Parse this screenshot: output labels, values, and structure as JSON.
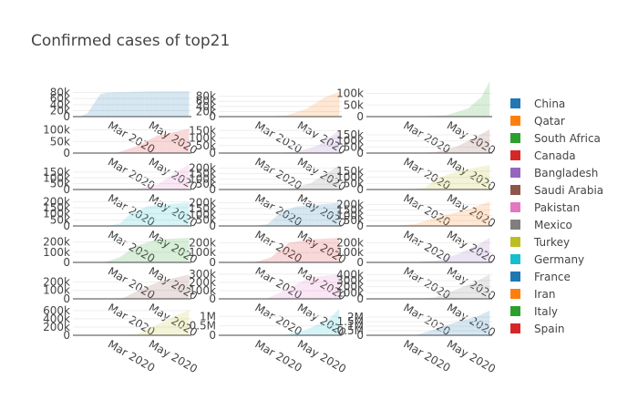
{
  "chart_data": {
    "type": "bar",
    "title": "Confirmed cases of top21",
    "layout_grid": {
      "rows": 7,
      "cols": 3
    },
    "x_tick_labels": [
      "Mar 2020",
      "May 2020"
    ],
    "x_range": [
      "2020-01-10",
      "2020-07-05"
    ],
    "legend": [
      {
        "name": "China",
        "color": "#1f77b4"
      },
      {
        "name": "Qatar",
        "color": "#ff7f0e"
      },
      {
        "name": "South Africa",
        "color": "#2ca02c"
      },
      {
        "name": "Canada",
        "color": "#d62728"
      },
      {
        "name": "Bangladesh",
        "color": "#9467bd"
      },
      {
        "name": "Saudi Arabia",
        "color": "#8c564b"
      },
      {
        "name": "Pakistan",
        "color": "#e377c2"
      },
      {
        "name": "Mexico",
        "color": "#7f7f7f"
      },
      {
        "name": "Turkey",
        "color": "#bcbd22"
      },
      {
        "name": "Germany",
        "color": "#17becf"
      },
      {
        "name": "France",
        "color": "#1f77b4"
      },
      {
        "name": "Iran",
        "color": "#ff7f0e"
      },
      {
        "name": "Italy",
        "color": "#2ca02c"
      },
      {
        "name": "Spain",
        "color": "#d62728"
      }
    ],
    "panels": [
      {
        "color": "#1f77b4",
        "ylim": [
          0,
          85000
        ],
        "yticks": [
          "0",
          "20k",
          "40k",
          "60k",
          "80k"
        ],
        "ytick_values": [
          0,
          20000,
          40000,
          60000,
          80000
        ],
        "series": [
          [
            "2020-01-22",
            550
          ],
          [
            "2020-02-01",
            12000
          ],
          [
            "2020-02-10",
            42000
          ],
          [
            "2020-02-20",
            75000
          ],
          [
            "2020-03-01",
            80000
          ],
          [
            "2020-04-01",
            82000
          ],
          [
            "2020-05-01",
            84000
          ],
          [
            "2020-07-01",
            84500
          ]
        ]
      },
      {
        "color": "#ff7f0e",
        "ylim": [
          0,
          100000
        ],
        "yticks": [
          "0",
          "20k",
          "40k",
          "60k",
          "80k"
        ],
        "ytick_values": [
          0,
          20000,
          40000,
          60000,
          80000
        ],
        "series": [
          [
            "2020-01-22",
            0
          ],
          [
            "2020-03-15",
            400
          ],
          [
            "2020-04-15",
            4000
          ],
          [
            "2020-05-15",
            30000
          ],
          [
            "2020-06-10",
            75000
          ],
          [
            "2020-07-01",
            97000
          ]
        ]
      },
      {
        "color": "#2ca02c",
        "ylim": [
          0,
          110000
        ],
        "yticks": [
          "0",
          "50k",
          "100k"
        ],
        "ytick_values": [
          0,
          50000,
          100000
        ],
        "series": [
          [
            "2020-01-22",
            0
          ],
          [
            "2020-03-20",
            200
          ],
          [
            "2020-05-01",
            5500
          ],
          [
            "2020-06-01",
            35000
          ],
          [
            "2020-06-20",
            85000
          ],
          [
            "2020-07-01",
            150000
          ]
        ]
      },
      {
        "color": "#d62728",
        "ylim": [
          0,
          110000
        ],
        "yticks": [
          "0",
          "50k",
          "100k"
        ],
        "ytick_values": [
          0,
          50000,
          100000
        ],
        "series": [
          [
            "2020-01-22",
            0
          ],
          [
            "2020-03-15",
            300
          ],
          [
            "2020-04-15",
            30000
          ],
          [
            "2020-05-15",
            75000
          ],
          [
            "2020-07-01",
            104000
          ]
        ]
      },
      {
        "color": "#9467bd",
        "ylim": [
          0,
          170000
        ],
        "yticks": [
          "0",
          "50k",
          "100k",
          "150k"
        ],
        "ytick_values": [
          0,
          50000,
          100000,
          150000
        ],
        "series": [
          [
            "2020-01-22",
            0
          ],
          [
            "2020-04-01",
            50
          ],
          [
            "2020-05-01",
            8000
          ],
          [
            "2020-06-01",
            50000
          ],
          [
            "2020-07-01",
            150000
          ]
        ]
      },
      {
        "color": "#8c564b",
        "ylim": [
          0,
          210000
        ],
        "yticks": [
          "0",
          "50k",
          "100k",
          "150k"
        ],
        "ytick_values": [
          0,
          50000,
          100000,
          150000
        ],
        "series": [
          [
            "2020-01-22",
            0
          ],
          [
            "2020-03-15",
            100
          ],
          [
            "2020-04-15",
            7000
          ],
          [
            "2020-05-15",
            50000
          ],
          [
            "2020-06-15",
            140000
          ],
          [
            "2020-07-01",
            195000
          ]
        ]
      },
      {
        "color": "#e377c2",
        "ylim": [
          0,
          220000
        ],
        "yticks": [
          "0",
          "50k",
          "100k",
          "150k"
        ],
        "ytick_values": [
          0,
          50000,
          100000,
          150000
        ],
        "series": [
          [
            "2020-01-22",
            0
          ],
          [
            "2020-03-15",
            50
          ],
          [
            "2020-04-15",
            7000
          ],
          [
            "2020-05-15",
            40000
          ],
          [
            "2020-06-15",
            160000
          ],
          [
            "2020-07-01",
            215000
          ]
        ]
      },
      {
        "color": "#7f7f7f",
        "ylim": [
          0,
          240000
        ],
        "yticks": [
          "0",
          "50k",
          "100k",
          "150k",
          "200k"
        ],
        "ytick_values": [
          0,
          50000,
          100000,
          150000,
          200000
        ],
        "series": [
          [
            "2020-01-22",
            0
          ],
          [
            "2020-03-20",
            200
          ],
          [
            "2020-04-20",
            8000
          ],
          [
            "2020-05-20",
            55000
          ],
          [
            "2020-06-20",
            180000
          ],
          [
            "2020-07-01",
            230000
          ]
        ]
      },
      {
        "color": "#bcbd22",
        "ylim": [
          0,
          210000
        ],
        "yticks": [
          "0",
          "50k",
          "100k",
          "150k"
        ],
        "ytick_values": [
          0,
          50000,
          100000,
          150000
        ],
        "series": [
          [
            "2020-01-22",
            0
          ],
          [
            "2020-03-12",
            10
          ],
          [
            "2020-04-01",
            15000
          ],
          [
            "2020-04-20",
            95000
          ],
          [
            "2020-05-20",
            155000
          ],
          [
            "2020-07-01",
            200000
          ]
        ]
      },
      {
        "color": "#17becf",
        "ylim": [
          0,
          210000
        ],
        "yticks": [
          "0",
          "50k",
          "100k",
          "150k",
          "200k"
        ],
        "ytick_values": [
          0,
          50000,
          100000,
          150000,
          200000
        ],
        "series": [
          [
            "2020-01-22",
            0
          ],
          [
            "2020-03-01",
            150
          ],
          [
            "2020-03-20",
            20000
          ],
          [
            "2020-04-05",
            100000
          ],
          [
            "2020-05-01",
            163000
          ],
          [
            "2020-07-01",
            195000
          ]
        ]
      },
      {
        "color": "#1f77b4",
        "ylim": [
          0,
          220000
        ],
        "yticks": [
          "0",
          "50k",
          "100k",
          "150k",
          "200k"
        ],
        "ytick_values": [
          0,
          50000,
          100000,
          150000,
          200000
        ],
        "series": [
          [
            "2020-01-22",
            0
          ],
          [
            "2020-03-01",
            130
          ],
          [
            "2020-03-20",
            15000
          ],
          [
            "2020-04-10",
            125000
          ],
          [
            "2020-05-01",
            168000
          ],
          [
            "2020-07-01",
            200000
          ]
        ]
      },
      {
        "color": "#ff7f0e",
        "ylim": [
          0,
          240000
        ],
        "yticks": [
          "0",
          "50k",
          "100k",
          "150k",
          "200k"
        ],
        "ytick_values": [
          0,
          50000,
          100000,
          150000,
          200000
        ],
        "series": [
          [
            "2020-01-22",
            0
          ],
          [
            "2020-02-20",
            10
          ],
          [
            "2020-03-20",
            20000
          ],
          [
            "2020-04-20",
            85000
          ],
          [
            "2020-06-01",
            155000
          ],
          [
            "2020-07-01",
            230000
          ]
        ]
      },
      {
        "color": "#2ca02c",
        "ylim": [
          0,
          250000
        ],
        "yticks": [
          "0",
          "100k",
          "200k"
        ],
        "ytick_values": [
          0,
          100000,
          200000
        ],
        "series": [
          [
            "2020-01-22",
            0
          ],
          [
            "2020-02-25",
            300
          ],
          [
            "2020-03-20",
            50000
          ],
          [
            "2020-04-15",
            165000
          ],
          [
            "2020-05-15",
            225000
          ],
          [
            "2020-07-01",
            241000
          ]
        ]
      },
      {
        "color": "#d62728",
        "ylim": [
          0,
          260000
        ],
        "yticks": [
          "0",
          "100k",
          "200k"
        ],
        "ytick_values": [
          0,
          100000,
          200000
        ],
        "series": [
          [
            "2020-01-22",
            0
          ],
          [
            "2020-03-01",
            80
          ],
          [
            "2020-03-25",
            50000
          ],
          [
            "2020-04-20",
            200000
          ],
          [
            "2020-05-20",
            233000
          ],
          [
            "2020-07-01",
            250000
          ]
        ]
      },
      {
        "color": "#9467bd",
        "ylim": [
          0,
          260000
        ],
        "yticks": [
          "0",
          "100k",
          "200k"
        ],
        "ytick_values": [
          0,
          100000,
          200000
        ],
        "series": [
          [
            "2020-01-22",
            0
          ],
          [
            "2020-03-15",
            100
          ],
          [
            "2020-04-20",
            20000
          ],
          [
            "2020-05-20",
            90000
          ],
          [
            "2020-06-20",
            200000
          ],
          [
            "2020-07-01",
            250000
          ]
        ]
      },
      {
        "color": "#8c564b",
        "ylim": [
          0,
          300000
        ],
        "yticks": [
          "0",
          "100k",
          "200k"
        ],
        "ytick_values": [
          0,
          100000,
          200000
        ],
        "series": [
          [
            "2020-01-22",
            0
          ],
          [
            "2020-03-01",
            30
          ],
          [
            "2020-03-25",
            10000
          ],
          [
            "2020-04-20",
            110000
          ],
          [
            "2020-05-20",
            210000
          ],
          [
            "2020-07-01",
            285000
          ]
        ]
      },
      {
        "color": "#e377c2",
        "ylim": [
          0,
          310000
        ],
        "yticks": [
          "0",
          "100k",
          "200k",
          "300k"
        ],
        "ytick_values": [
          0,
          100000,
          200000,
          300000
        ],
        "series": [
          [
            "2020-01-22",
            0
          ],
          [
            "2020-03-01",
            30
          ],
          [
            "2020-03-20",
            5000
          ],
          [
            "2020-04-20",
            130000
          ],
          [
            "2020-05-20",
            260000
          ],
          [
            "2020-07-01",
            300000
          ]
        ]
      },
      {
        "color": "#7f7f7f",
        "ylim": [
          0,
          420000
        ],
        "yticks": [
          "0",
          "100k",
          "200k",
          "300k",
          "400k"
        ],
        "ytick_values": [
          0,
          100000,
          200000,
          300000,
          400000
        ],
        "series": [
          [
            "2020-01-22",
            0
          ],
          [
            "2020-03-15",
            50
          ],
          [
            "2020-04-15",
            20000
          ],
          [
            "2020-05-15",
            150000
          ],
          [
            "2020-06-15",
            300000
          ],
          [
            "2020-07-01",
            400000
          ]
        ]
      },
      {
        "color": "#bcbd22",
        "ylim": [
          0,
          620000
        ],
        "yticks": [
          "0",
          "200k",
          "400k",
          "600k"
        ],
        "ytick_values": [
          0,
          200000,
          400000,
          600000
        ],
        "series": [
          [
            "2020-01-22",
            0
          ],
          [
            "2020-03-15",
            60
          ],
          [
            "2020-04-15",
            30000
          ],
          [
            "2020-05-15",
            260000
          ],
          [
            "2020-06-15",
            500000
          ],
          [
            "2020-07-01",
            600000
          ]
        ]
      },
      {
        "color": "#17becf",
        "ylim": [
          0,
          1350000
        ],
        "yticks": [
          "0",
          "0.5M",
          "1M"
        ],
        "ytick_values": [
          0,
          500000,
          1000000
        ],
        "series": [
          [
            "2020-01-22",
            0
          ],
          [
            "2020-03-15",
            100
          ],
          [
            "2020-04-15",
            30000
          ],
          [
            "2020-05-15",
            300000
          ],
          [
            "2020-06-15",
            800000
          ],
          [
            "2020-07-01",
            1400000
          ]
        ]
      },
      {
        "color": "#1f77b4",
        "ylim": [
          0,
          2800000
        ],
        "yticks": [
          "0",
          "0.5M",
          "1M",
          "1.5M",
          "2M"
        ],
        "ytick_values": [
          0,
          500000,
          1000000,
          1500000,
          2000000
        ],
        "series": [
          [
            "2020-01-22",
            1
          ],
          [
            "2020-03-01",
            75
          ],
          [
            "2020-03-20",
            19000
          ],
          [
            "2020-04-15",
            640000
          ],
          [
            "2020-05-15",
            1440000
          ],
          [
            "2020-06-15",
            2100000
          ],
          [
            "2020-07-01",
            2700000
          ]
        ]
      }
    ]
  }
}
